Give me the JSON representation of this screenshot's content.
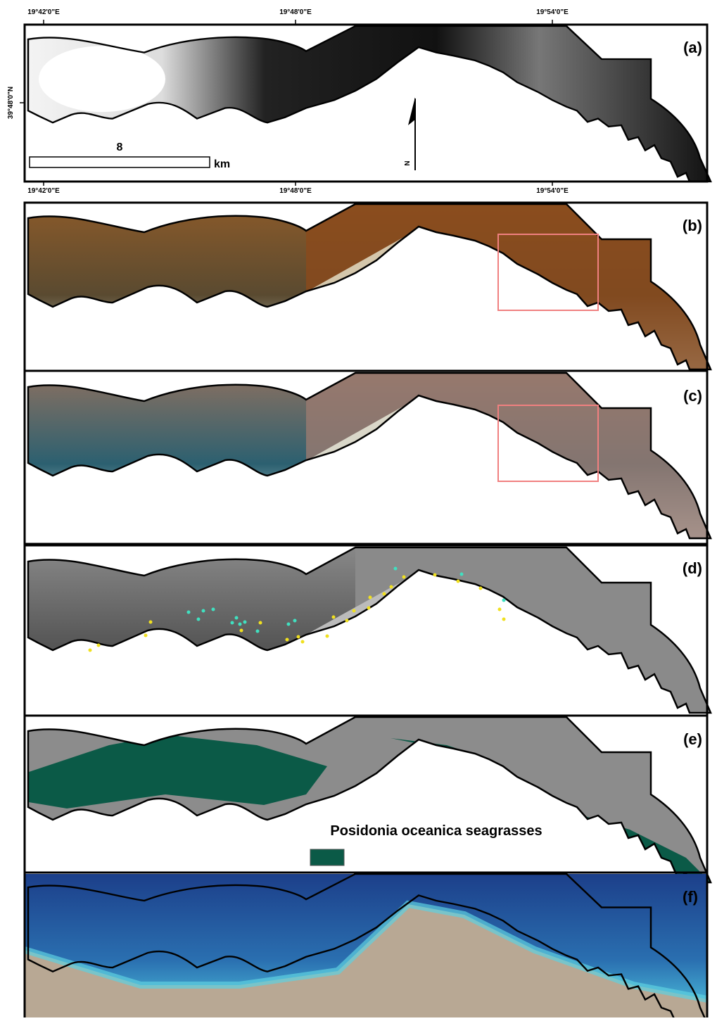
{
  "graticule": {
    "top": [
      "19°42'0\"E",
      "19°48'0\"E",
      "19°54'0\"E"
    ],
    "bottom": [
      "19°42'0\"E",
      "19°48'0\"E",
      "19°54'0\"E"
    ],
    "left": "39°48'0\"N"
  },
  "scale_bar": {
    "value": "8",
    "unit": "km"
  },
  "north_arrow": "N",
  "panels": [
    "(a)",
    "(b)",
    "(c)",
    "(d)",
    "(e)",
    "(f)"
  ],
  "legend": {
    "label": "Posidonia oceanica seagrasses"
  }
}
